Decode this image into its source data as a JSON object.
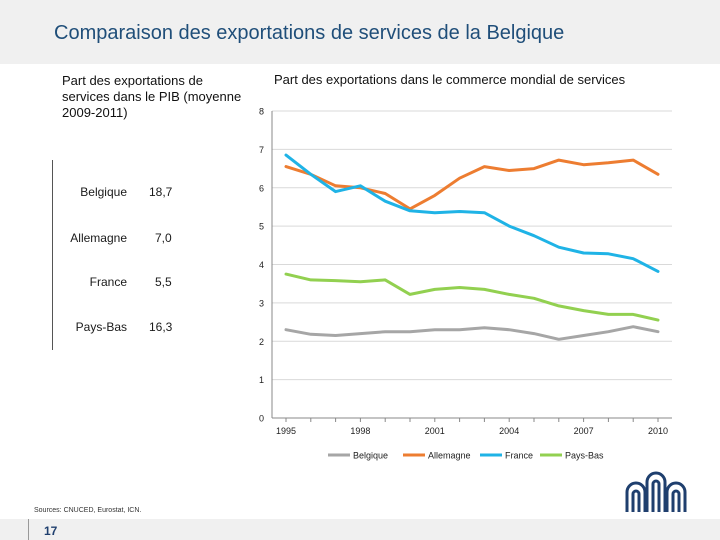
{
  "page": {
    "title": "Comparaison des exportations de services de la Belgique",
    "page_number": "17",
    "sources": "Sources: CNUCED, Eurostat, ICN."
  },
  "pib_table": {
    "heading": "Part des exportations de services dans le PIB (moyenne 2009-2011)",
    "rows": [
      {
        "country": "Belgique",
        "value": "18,7"
      },
      {
        "country": "Allemagne",
        "value": "7,0"
      },
      {
        "country": "France",
        "value": "5,5"
      },
      {
        "country": "Pays-Bas",
        "value": "16,3"
      }
    ]
  },
  "chart_data": {
    "type": "line",
    "title": "Part des exportations dans le commerce mondial de services",
    "xlabel": "",
    "ylabel": "",
    "ylim": [
      0,
      8
    ],
    "yticks": [
      "0",
      "1",
      "2",
      "3",
      "4",
      "5",
      "6",
      "7",
      "8"
    ],
    "x": [
      1995,
      1996,
      1997,
      1998,
      1999,
      2000,
      2001,
      2002,
      2003,
      2004,
      2005,
      2006,
      2007,
      2008,
      2009,
      2010
    ],
    "xticks": [
      "1995",
      "1998",
      "2001",
      "2004",
      "2007",
      "2010"
    ],
    "legend_position": "bottom",
    "grid": "horizontal",
    "series": [
      {
        "name": "Belgique",
        "color": "#a6a6a6",
        "values": [
          2.3,
          2.18,
          2.15,
          2.2,
          2.25,
          2.25,
          2.3,
          2.3,
          2.35,
          2.3,
          2.2,
          2.05,
          2.15,
          2.25,
          2.38,
          2.25
        ]
      },
      {
        "name": "Allemagne",
        "color": "#ed7d31",
        "values": [
          6.55,
          6.35,
          6.05,
          6.0,
          5.85,
          5.45,
          5.8,
          6.25,
          6.55,
          6.45,
          6.5,
          6.72,
          6.6,
          6.65,
          6.72,
          6.35
        ]
      },
      {
        "name": "France",
        "color": "#1fb3e6",
        "values": [
          6.85,
          6.35,
          5.9,
          6.05,
          5.65,
          5.4,
          5.35,
          5.38,
          5.35,
          5.0,
          4.75,
          4.45,
          4.3,
          4.28,
          4.15,
          3.82
        ]
      },
      {
        "name": "Pays-Bas",
        "color": "#92d050",
        "values": [
          3.75,
          3.6,
          3.58,
          3.55,
          3.6,
          3.22,
          3.35,
          3.4,
          3.35,
          3.22,
          3.12,
          2.92,
          2.8,
          2.7,
          2.7,
          2.55
        ]
      }
    ]
  }
}
